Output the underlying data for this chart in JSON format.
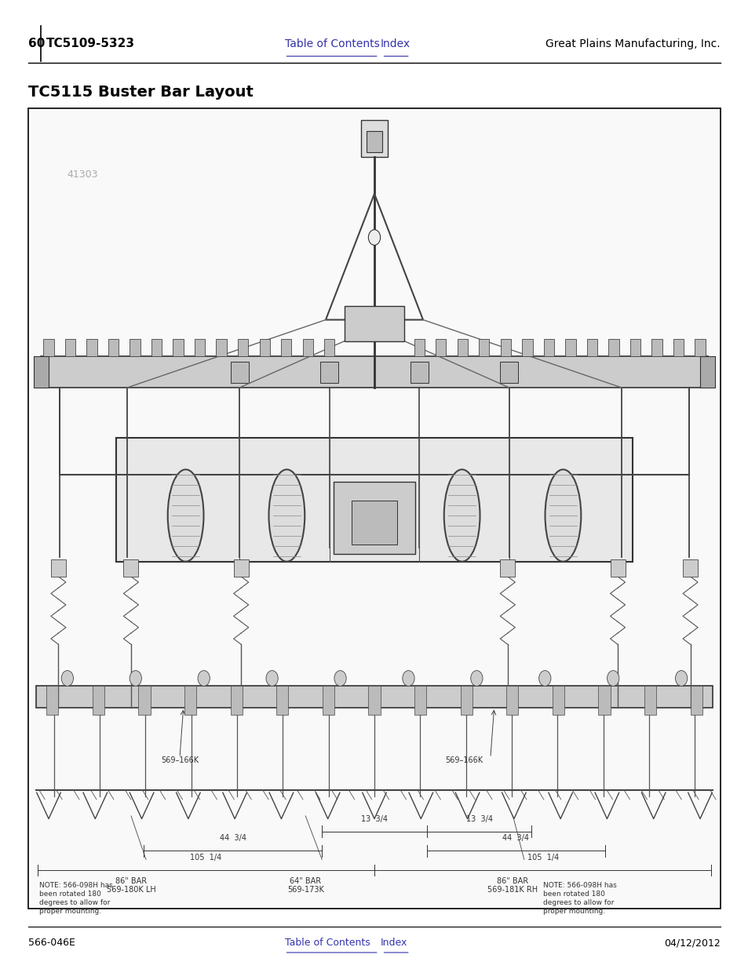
{
  "page_number": "60",
  "doc_code": "TC5109-5323",
  "company": "Great Plains Manufacturing, Inc.",
  "toc_link": "Table of Contents",
  "index_link": "Index",
  "footer_left": "566-046E",
  "footer_right": "04/12/2012",
  "section_title": "TC5115 Buster Bar Layout",
  "diagram_label": "41303",
  "bg_color": "#ffffff",
  "border_color": "#000000",
  "link_color": "#3333aa",
  "header_line_color": "#000000"
}
